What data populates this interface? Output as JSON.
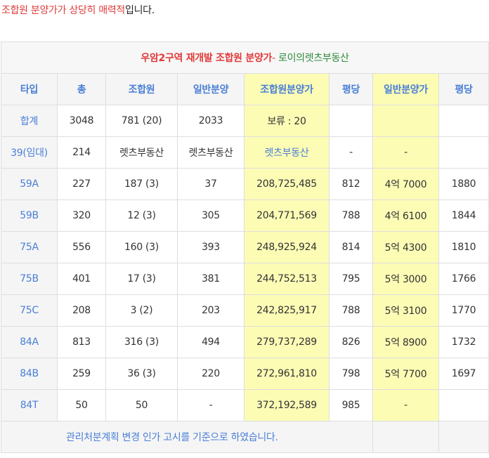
{
  "headline": {
    "part_red": "조합원 분양가가 상당히 매력적",
    "part_dark": "입니다."
  },
  "table": {
    "title_red": "우암2구역 재개발 조합원 분양가",
    "title_dash": "-",
    "title_green": " 로이의렛츠부동산",
    "headers": [
      "타입",
      "총",
      "조합원",
      "일반분양",
      "조합원분양가",
      "평당",
      "일반분양가",
      "평당"
    ],
    "rows": [
      [
        "합계",
        "3048",
        "781 (20)",
        "2033",
        "보류 : 20",
        "",
        "",
        ""
      ],
      [
        "39(임대)",
        "214",
        "렛츠부동산",
        "렛츠부동산",
        "렛츠부동산",
        "-",
        "-",
        ""
      ],
      [
        "59A",
        "227",
        "187 (3)",
        "37",
        "208,725,485",
        "812",
        "4억 7000",
        "1880"
      ],
      [
        "59B",
        "320",
        "12 (3)",
        "305",
        "204,771,569",
        "788",
        "4억 6100",
        "1844"
      ],
      [
        "75A",
        "556",
        "160 (3)",
        "393",
        "248,925,924",
        "814",
        "5억 4300",
        "1810"
      ],
      [
        "75B",
        "401",
        "17 (3)",
        "381",
        "244,752,513",
        "795",
        "5억 3000",
        "1766"
      ],
      [
        "75C",
        "208",
        "3 (2)",
        "203",
        "242,825,917",
        "788",
        "5억 3100",
        "1770"
      ],
      [
        "84A",
        "813",
        "316 (3)",
        "494",
        "279,737,289",
        "826",
        "5억 8900",
        "1732"
      ],
      [
        "84B",
        "259",
        "36 (3)",
        "220",
        "272,961,810",
        "798",
        "5억 7700",
        "1697"
      ],
      [
        "84T",
        "50",
        "50",
        "-",
        "372,192,589",
        "985",
        "-",
        ""
      ]
    ],
    "note": "관리처분계획 변경 인가 고시를 기준으로 하였습니다."
  },
  "colors": {
    "accent_red": "#e23a3a",
    "accent_green": "#2e8b3c",
    "header_blue": "#4a7fd6",
    "highlight_yellow": "#fcfcb5",
    "header_bg": "#f5f5f5",
    "border": "#dedede"
  }
}
